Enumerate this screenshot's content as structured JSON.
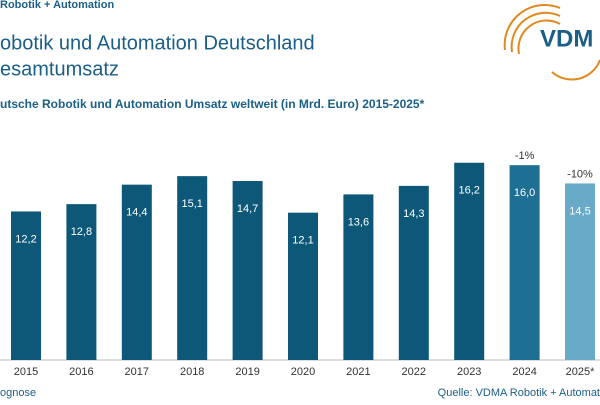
{
  "header": {
    "kicker": "Robotik + Automation",
    "title_lines": [
      "obotik und Automation Deutschland",
      "esamtumsatz"
    ],
    "logo": "VDM"
  },
  "chart_data": {
    "type": "bar",
    "title": "utsche Robotik und Automation Umsatz weltweit (in Mrd. Euro) 2015-2025*",
    "categories": [
      "2015",
      "2016",
      "2017",
      "2018",
      "2019",
      "2020",
      "2021",
      "2022",
      "2023",
      "2024",
      "2025*"
    ],
    "values": [
      12.2,
      12.8,
      14.4,
      15.1,
      14.7,
      12.1,
      13.6,
      14.3,
      16.2,
      16.0,
      14.5
    ],
    "value_labels": [
      "12,2",
      "12,8",
      "14,4",
      "15,1",
      "14,7",
      "12,1",
      "13,6",
      "14,3",
      "16,2",
      "16,0",
      "14,5"
    ],
    "colors": [
      "#0d5878",
      "#0d5878",
      "#0d5878",
      "#0d5878",
      "#0d5878",
      "#0d5878",
      "#0d5878",
      "#0d5878",
      "#0d5878",
      "#1d6f94",
      "#6aaac9"
    ],
    "annotations": [
      null,
      null,
      null,
      null,
      null,
      null,
      null,
      null,
      null,
      "-1%",
      "-10%"
    ],
    "ylim": [
      0,
      17
    ]
  },
  "footer": {
    "note": "ognose",
    "source": "Quelle: VDMA Robotik + Automat"
  }
}
